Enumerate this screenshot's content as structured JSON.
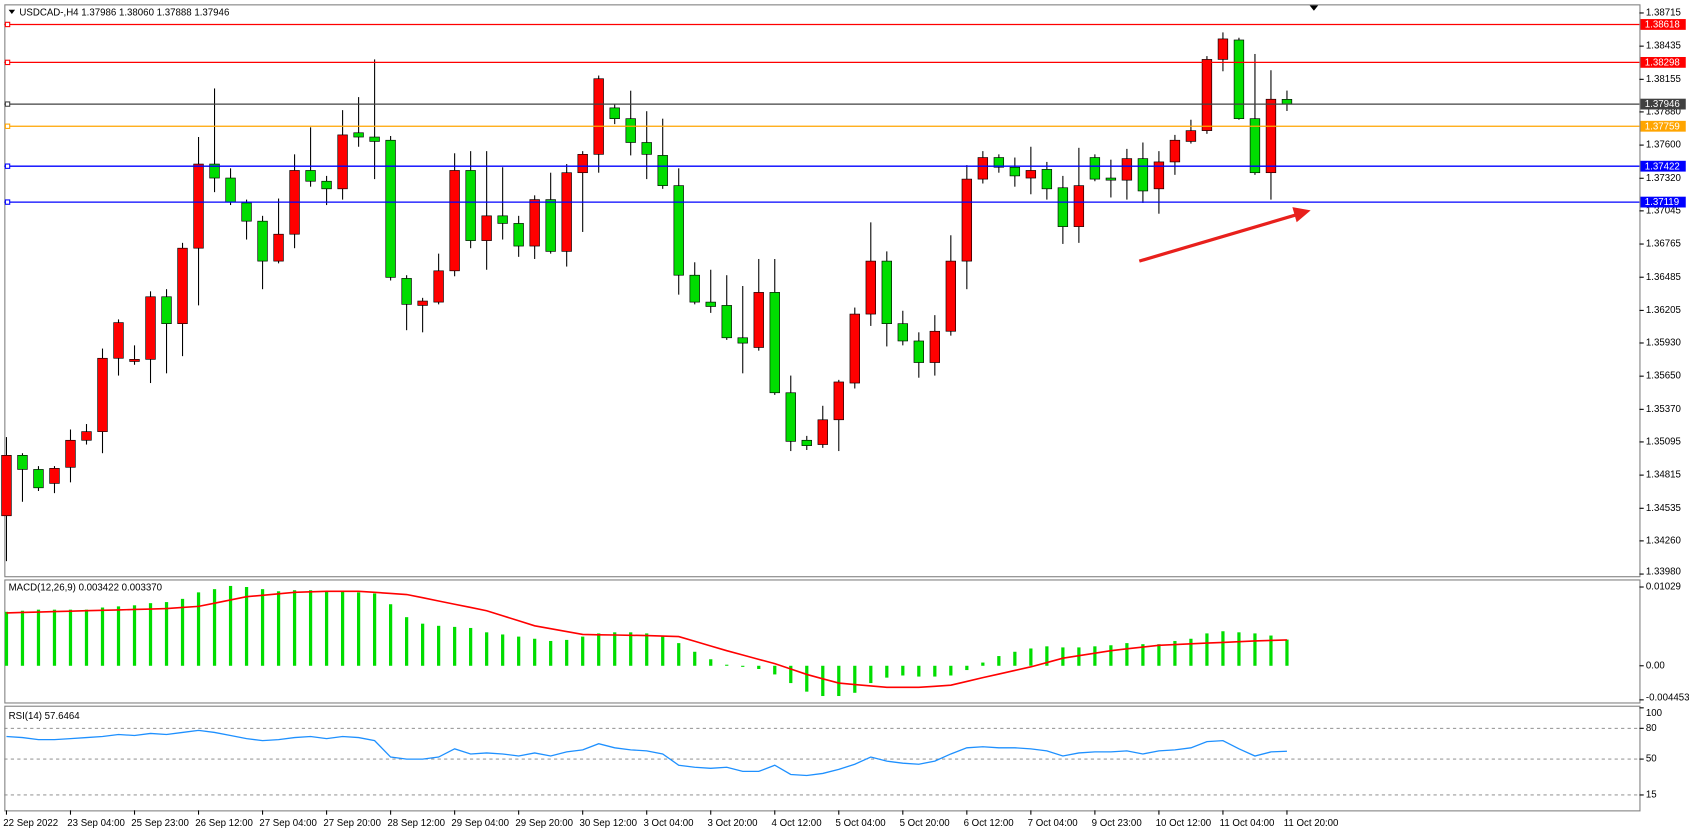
{
  "chart_data": [
    {
      "type": "candlestick",
      "title": "USDCAD-,H4 1.37986 1.38060 1.37888 1.37946",
      "categories": [
        "22 Sep 2022",
        null,
        null,
        null,
        "23 Sep 04:00",
        null,
        null,
        null,
        "25 Sep 23:00",
        null,
        null,
        null,
        "26 Sep 12:00",
        null,
        null,
        null,
        "27 Sep 04:00",
        null,
        null,
        null,
        "27 Sep 20:00",
        null,
        null,
        null,
        "28 Sep 12:00",
        null,
        null,
        null,
        "29 Sep 04:00",
        null,
        null,
        null,
        "29 Sep 20:00",
        null,
        null,
        null,
        "30 Sep 12:00",
        null,
        null,
        null,
        "3 Oct 04:00",
        null,
        null,
        null,
        "3 Oct 20:00",
        null,
        null,
        null,
        "4 Oct 12:00",
        null,
        null,
        null,
        "5 Oct 04:00",
        null,
        null,
        null,
        "5 Oct 20:00",
        null,
        null,
        null,
        "6 Oct 12:00",
        null,
        null,
        null,
        "7 Oct 04:00",
        null,
        null,
        null,
        "9 Oct 23:00",
        null,
        null,
        null,
        "10 Oct 12:00",
        null,
        null,
        null,
        "11 Oct 04:00",
        null,
        null,
        null,
        "11 Oct 20:00"
      ],
      "open": [
        1.34472,
        1.34982,
        1.34863,
        1.34745,
        1.34881,
        1.35109,
        1.35182,
        1.35801,
        1.35774,
        1.35792,
        1.3632,
        1.36093,
        1.3673,
        1.3744,
        1.37322,
        1.37112,
        1.36958,
        1.36621,
        1.36848,
        1.37386,
        1.37295,
        1.37231,
        1.37704,
        1.37668,
        1.37641,
        1.36475,
        1.36247,
        1.36275,
        1.36539,
        1.37386,
        1.36794,
        1.37003,
        1.36939,
        1.36748,
        1.3714,
        1.36703,
        1.37367,
        1.37522,
        1.37914,
        1.37823,
        1.37622,
        1.37513,
        1.37258,
        1.36502,
        1.36275,
        1.36247,
        1.35974,
        1.35892,
        1.36357,
        1.3551,
        1.35109,
        1.35073,
        1.35282,
        1.35592,
        1.36174,
        1.36621,
        1.36093,
        1.35947,
        1.35765,
        1.36029,
        1.36621,
        1.37313,
        1.37495,
        1.37413,
        1.37322,
        1.37395,
        1.3724,
        1.36912,
        1.37495,
        1.37322,
        1.37304,
        1.37486,
        1.37231,
        1.37458,
        1.37631,
        1.37722,
        1.38323,
        1.38487,
        1.37823,
        1.37367,
        1.37986
      ],
      "high": [
        1.35136,
        1.35,
        1.34891,
        1.34891,
        1.352,
        1.35246,
        1.35883,
        1.36129,
        1.3591,
        1.36366,
        1.36384,
        1.36775,
        1.37668,
        1.38078,
        1.37404,
        1.3714,
        1.37003,
        1.37149,
        1.37522,
        1.3775,
        1.3734,
        1.37895,
        1.38005,
        1.38323,
        1.37677,
        1.36502,
        1.36311,
        1.36684,
        1.37531,
        1.37549,
        1.37549,
        1.37413,
        1.37003,
        1.37176,
        1.37367,
        1.3744,
        1.37549,
        1.38187,
        1.3795,
        1.38059,
        1.37886,
        1.37823,
        1.37404,
        1.36611,
        1.36548,
        1.36502,
        1.36411,
        1.36639,
        1.36639,
        1.35655,
        1.35146,
        1.354,
        1.35619,
        1.36229,
        1.36948,
        1.36703,
        1.36202,
        1.3602,
        1.36165,
        1.36839,
        1.37431,
        1.37549,
        1.37522,
        1.37495,
        1.37586,
        1.37458,
        1.3734,
        1.37577,
        1.37522,
        1.37477,
        1.37568,
        1.37622,
        1.37549,
        1.37686,
        1.37814,
        1.38351,
        1.38551,
        1.38506,
        1.38369,
        1.38232,
        1.3806
      ],
      "low": [
        1.34089,
        1.3459,
        1.34681,
        1.34663,
        1.34754,
        1.35073,
        1.35,
        1.35655,
        1.35746,
        1.35592,
        1.35674,
        1.35819,
        1.36247,
        1.37203,
        1.37094,
        1.36803,
        1.36384,
        1.36602,
        1.3673,
        1.37249,
        1.37094,
        1.3714,
        1.37586,
        1.37313,
        1.36457,
        1.36038,
        1.3602,
        1.36256,
        1.36493,
        1.3673,
        1.36548,
        1.36803,
        1.36657,
        1.36639,
        1.36684,
        1.36575,
        1.36867,
        1.37367,
        1.37777,
        1.37513,
        1.37313,
        1.37231,
        1.36338,
        1.36256,
        1.36184,
        1.35956,
        1.35674,
        1.35865,
        1.35492,
        1.35018,
        1.35027,
        1.35045,
        1.35018,
        1.35546,
        1.36074,
        1.35901,
        1.3591,
        1.35637,
        1.35655,
        1.35992,
        1.36384,
        1.37276,
        1.37367,
        1.37249,
        1.37185,
        1.3714,
        1.36766,
        1.36775,
        1.37295,
        1.37158,
        1.3714,
        1.37112,
        1.37021,
        1.37349,
        1.37613,
        1.37695,
        1.38223,
        1.37814,
        1.37349,
        1.3714,
        1.37888
      ],
      "close": [
        1.34982,
        1.34863,
        1.34708,
        1.34872,
        1.35109,
        1.35182,
        1.35801,
        1.36102,
        1.35792,
        1.3632,
        1.36093,
        1.3673,
        1.3744,
        1.37322,
        1.37121,
        1.36958,
        1.36621,
        1.36848,
        1.37386,
        1.37295,
        1.37231,
        1.37686,
        1.37668,
        1.37631,
        1.36484,
        1.36256,
        1.36284,
        1.36539,
        1.37386,
        1.36794,
        1.37003,
        1.36939,
        1.36748,
        1.3714,
        1.36703,
        1.37367,
        1.37522,
        1.3816,
        1.37823,
        1.37622,
        1.37522,
        1.37258,
        1.36502,
        1.36275,
        1.36238,
        1.35974,
        1.35929,
        1.36357,
        1.3551,
        1.351,
        1.35064,
        1.35282,
        1.35601,
        1.36174,
        1.36621,
        1.36093,
        1.35947,
        1.35765,
        1.36029,
        1.36621,
        1.37313,
        1.37495,
        1.37413,
        1.3734,
        1.37386,
        1.37231,
        1.36912,
        1.37258,
        1.37313,
        1.37304,
        1.37486,
        1.37213,
        1.37458,
        1.37641,
        1.37722,
        1.38323,
        1.38496,
        1.37823,
        1.37367,
        1.37987,
        1.37946
      ],
      "up_color": "#ff0000",
      "down_color": "#00dd00",
      "ylim": [
        1.33962,
        1.38788
      ],
      "yticks": [
        1.38715,
        1.38435,
        1.38155,
        {
          "value": 1.3788,
          "label": "1.37880"
        },
        {
          "value": 1.376,
          "label": "1.37600"
        },
        {
          "value": 1.3732,
          "label": "1.37320"
        },
        1.37045,
        1.36765,
        1.36485,
        1.36205,
        {
          "value": 1.3593,
          "label": "1.35930"
        },
        {
          "value": 1.3565,
          "label": "1.35650"
        },
        {
          "value": 1.3537,
          "label": "1.35370"
        },
        1.35095,
        1.34815,
        1.34535,
        {
          "value": 1.3426,
          "label": "1.34260"
        },
        {
          "value": 1.3398,
          "label": "1.33980"
        }
      ],
      "lines": [
        {
          "value": 1.38618,
          "color": "#ff0000"
        },
        {
          "value": 1.38298,
          "color": "#ff0000"
        },
        {
          "value": 1.37946,
          "color": "#404040"
        },
        {
          "value": 1.37759,
          "color": "#ffa500"
        },
        {
          "value": 1.37422,
          "color": "#0000ff"
        },
        {
          "value": 1.37119,
          "color": "#0000ff"
        }
      ]
    },
    {
      "type": "bar",
      "title": "MACD(12,26,9) 0.003422 0.003370",
      "series": [
        {
          "type": "bar",
          "color": "#00dd00",
          "values": [
            0.00705,
            0.00719,
            0.00733,
            0.00733,
            0.00733,
            0.00733,
            0.00761,
            0.00776,
            0.0079,
            0.00818,
            0.00832,
            0.00874,
            0.00959,
            0.01001,
            0.01043,
            0.01029,
            0.01001,
            0.00973,
            0.00987,
            0.00987,
            0.00973,
            0.00973,
            0.00959,
            0.00945,
            0.00804,
            0.00635,
            0.0055,
            0.00522,
            0.00508,
            0.00494,
            0.00437,
            0.00409,
            0.00381,
            0.00353,
            0.00324,
            0.00338,
            0.00381,
            0.00423,
            0.00437,
            0.00437,
            0.00423,
            0.00395,
            0.00296,
            0.00183,
            0.00085,
            0.00014,
            -0.00014,
            -0.00042,
            -0.00113,
            -0.00226,
            -0.00338,
            -0.00395,
            -0.00395,
            -0.00353,
            -0.00226,
            -0.00155,
            -0.00127,
            -0.00141,
            -0.00141,
            -0.00127,
            -0.00056,
            0.00042,
            0.00127,
            0.00183,
            0.00226,
            0.00254,
            0.0024,
            0.0024,
            0.00254,
            0.00268,
            0.00296,
            0.00282,
            0.00282,
            0.00324,
            0.00353,
            0.00423,
            0.00451,
            0.00437,
            0.00423,
            0.00395,
            0.00342
          ]
        },
        {
          "type": "line",
          "color": "#ff0000",
          "values": [
            0.00691,
            0.00697,
            0.00702,
            0.00708,
            0.00713,
            0.00719,
            0.00725,
            0.0073,
            0.00736,
            0.00741,
            0.00747,
            0.00762,
            0.00776,
            0.00818,
            0.0086,
            0.00902,
            0.00921,
            0.0094,
            0.00959,
            0.00966,
            0.00973,
            0.00973,
            0.00973,
            0.00959,
            0.00945,
            0.00931,
            0.00889,
            0.00846,
            0.00804,
            0.00762,
            0.00719,
            0.00653,
            0.00588,
            0.00522,
            0.00484,
            0.00447,
            0.00409,
            0.00405,
            0.00402,
            0.00398,
            0.00395,
            0.00388,
            0.00381,
            0.0032,
            0.00258,
            0.00197,
            0.00141,
            0.00084,
            0.00028,
            -0.00042,
            -0.00113,
            -0.0017,
            -0.00226,
            -0.00245,
            -0.00263,
            -0.00282,
            -0.00282,
            -0.00282,
            -0.00268,
            -0.00254,
            -0.00205,
            -0.00155,
            -0.00108,
            -0.00061,
            -0.00014,
            0.00042,
            0.00099,
            0.00132,
            0.00164,
            0.00197,
            0.00221,
            0.00244,
            0.00268,
            0.00277,
            0.00287,
            0.00296,
            0.00305,
            0.00315,
            0.00324,
            0.00331,
            0.00337
          ]
        }
      ],
      "ylim": [
        -0.00479,
        0.01128
      ],
      "yticks": [
        0.01029,
        {
          "value": 0,
          "label": "0.00"
        },
        -0.004453
      ]
    },
    {
      "type": "line",
      "title": "RSI(14) 57.6464",
      "color": "#1e90ff",
      "values": [
        72,
        71,
        69,
        69,
        70,
        71,
        72,
        74,
        73,
        75,
        74,
        76,
        78,
        76,
        73,
        70,
        68,
        69,
        71,
        72,
        70,
        72,
        71,
        68,
        52,
        50,
        50,
        52,
        60,
        55,
        56,
        55,
        53,
        56,
        53,
        57,
        59,
        65,
        61,
        59,
        58,
        55,
        44,
        42,
        41,
        42,
        38,
        38,
        44,
        35,
        34,
        36,
        40,
        45,
        52,
        48,
        46,
        45,
        48,
        55,
        61,
        62,
        61,
        61,
        60,
        58,
        53,
        56,
        57,
        57,
        58,
        55,
        58,
        59,
        61,
        67,
        68,
        60,
        53,
        57,
        57.6464
      ],
      "ylim": [
        0,
        100
      ],
      "yticks": [
        100,
        80,
        50,
        15
      ],
      "grid": true
    }
  ]
}
